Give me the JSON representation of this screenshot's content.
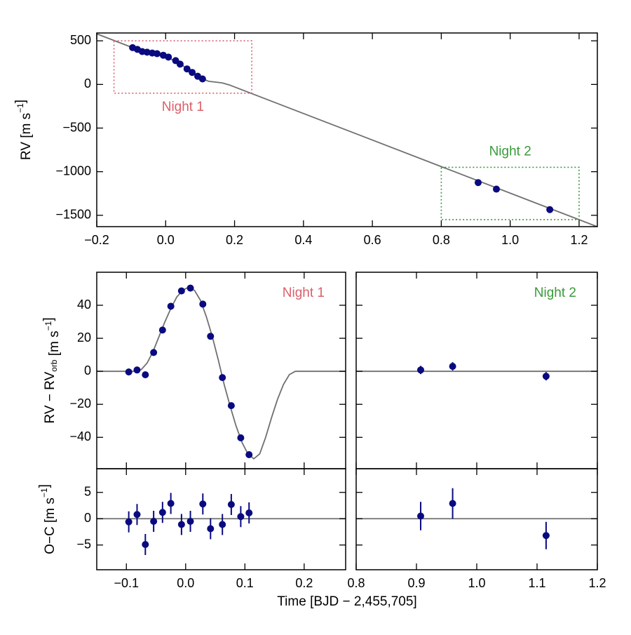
{
  "chart_data": [
    {
      "type": "scatter",
      "ylabel": [
        "RV [m s",
        {
          "sup": "−1"
        },
        "]"
      ],
      "xlim": [
        -0.2,
        1.253
      ],
      "ylim": [
        -1630,
        590
      ],
      "xticks": [
        {
          "value": -0.2,
          "label": "−0.2"
        },
        {
          "value": 0,
          "label": "0.0"
        },
        0.2,
        0.4,
        0.6,
        0.8,
        {
          "value": 1,
          "label": "1.0"
        },
        1.2
      ],
      "yticks": [
        {
          "value": -1500,
          "label": "−1500"
        },
        {
          "value": -1000,
          "label": "−1000"
        },
        {
          "value": -500,
          "label": "−500"
        },
        0,
        500
      ],
      "series": [
        {
          "style": "line",
          "color": "#707070",
          "x": [
            -0.2,
            -0.085,
            -0.045,
            -0.005,
            0.045,
            0.085,
            0.105,
            0.125,
            0.145,
            0.165,
            0.185,
            1.253
          ],
          "values": [
            580,
            405,
            366,
            333,
            229,
            114,
            66,
            36,
            27,
            17,
            -6,
            -1631
          ]
        },
        {
          "style": "marker",
          "color": "#0a0a80",
          "x": [
            -0.096,
            -0.082,
            -0.068,
            -0.054,
            -0.039,
            -0.025,
            -0.007,
            0.008,
            0.029,
            0.042,
            0.062,
            0.077,
            0.093,
            0.107,
            0.907,
            0.96,
            1.115
          ],
          "values": [
            422,
            402,
            377,
            370,
            360,
            353,
            335,
            314,
            273,
            233,
            178,
            138,
            94,
            63,
            -1125,
            -1200,
            -1435
          ]
        }
      ],
      "boxes": [
        {
          "label": "Night 1",
          "color": "#d9606b",
          "x": [
            -0.15,
            0.25
          ],
          "y": [
            -100,
            500
          ]
        },
        {
          "label": "Night 2",
          "color": "#3a9a3a",
          "x": [
            0.8,
            1.2
          ],
          "y": [
            -1550,
            -950
          ]
        }
      ]
    },
    {
      "type": "scatter",
      "ylabel": [
        "RV − RV",
        {
          "sub": "orb"
        },
        " [m s",
        {
          "sup": "−1"
        },
        "]"
      ],
      "xlim": [
        -0.15,
        0.27
      ],
      "ylim": [
        -59,
        60
      ],
      "xticks": [
        -0.1,
        0,
        0.1,
        0.2
      ],
      "yticks": [
        {
          "value": -40,
          "label": "−40"
        },
        {
          "value": -20,
          "label": "−20"
        },
        0,
        20,
        40
      ],
      "annotation": {
        "text": "Night 1",
        "color": "#d9606b"
      },
      "series": [
        {
          "style": "line",
          "color": "#707070",
          "x": [
            -0.15,
            -0.085,
            -0.075,
            -0.065,
            -0.055,
            -0.045,
            -0.035,
            -0.025,
            -0.015,
            -0.005,
            0.005,
            0.015,
            0.025,
            0.035,
            0.045,
            0.055,
            0.065,
            0.075,
            0.085,
            0.095,
            0.105,
            0.115,
            0.125,
            0.135,
            0.145,
            0.155,
            0.165,
            0.175,
            0.185,
            0.27
          ],
          "values": [
            0,
            0,
            1,
            5,
            12,
            21,
            30,
            38,
            45,
            49,
            51,
            49,
            43,
            33,
            21,
            7,
            -8,
            -21,
            -33,
            -43,
            -50,
            -53,
            -50,
            -40,
            -28,
            -17,
            -8,
            -2,
            0,
            0
          ]
        },
        {
          "style": "marker",
          "color": "#0a0a80",
          "x": [
            -0.096,
            -0.082,
            -0.068,
            -0.054,
            -0.039,
            -0.025,
            -0.007,
            0.008,
            0.029,
            0.042,
            0.062,
            0.077,
            0.093,
            0.107
          ],
          "values": [
            -0.4,
            0.8,
            -2.1,
            11.4,
            25,
            39.4,
            48.7,
            50.4,
            40.7,
            21.2,
            -3.8,
            -20.8,
            -40.3,
            -50.5
          ],
          "errors": [
            2,
            2,
            2,
            2,
            2,
            2,
            2,
            2,
            2,
            2,
            2,
            2,
            2,
            2
          ]
        }
      ]
    },
    {
      "type": "scatter",
      "xlim": [
        0.8,
        1.2
      ],
      "ylim": [
        -59,
        60
      ],
      "zero_line": true,
      "xticks": [
        0.8,
        0.9,
        1,
        1.1,
        1.2
      ],
      "yticks": [
        -40,
        -20,
        0,
        20,
        40
      ],
      "annotation": {
        "text": "Night 2",
        "color": "#3a9a3a"
      },
      "series": [
        {
          "style": "marker",
          "color": "#0a0a80",
          "x": [
            0.907,
            0.96,
            1.115
          ],
          "values": [
            0.8,
            3,
            -3
          ],
          "errors": [
            2.5,
            2.5,
            2.5
          ]
        }
      ]
    },
    {
      "type": "scatter",
      "ylabel": [
        "O−C [m s",
        {
          "sup": "−1"
        },
        "]"
      ],
      "xlabel": "Time [BJD − 2,455,705]",
      "xlim": [
        -0.15,
        0.27
      ],
      "ylim": [
        -9.7,
        9.5
      ],
      "zero_line": true,
      "xticks": [
        {
          "value": -0.1,
          "label": "−0.1"
        },
        {
          "value": 0,
          "label": "0.0"
        },
        0.1,
        0.2
      ],
      "yticks": [
        {
          "value": -5,
          "label": "−5"
        },
        0,
        5
      ],
      "series": [
        {
          "style": "marker",
          "color": "#0a0a80",
          "x": [
            -0.096,
            -0.082,
            -0.068,
            -0.054,
            -0.039,
            -0.025,
            -0.007,
            0.008,
            0.029,
            0.042,
            0.062,
            0.077,
            0.093,
            0.107
          ],
          "values": [
            -0.6,
            0.8,
            -4.9,
            -0.5,
            1.2,
            2.9,
            -1.1,
            -0.5,
            2.8,
            -1.9,
            -1.1,
            2.7,
            0.4,
            1.1
          ],
          "errors": [
            2,
            2,
            2,
            2,
            2,
            2,
            2,
            2,
            2,
            2,
            2,
            2,
            2,
            2
          ]
        }
      ]
    },
    {
      "type": "scatter",
      "xlim": [
        0.8,
        1.2
      ],
      "ylim": [
        -9.7,
        9.5
      ],
      "zero_line": true,
      "xticks": [
        {
          "value": 0.8,
          "label": "0.8"
        },
        0.9,
        {
          "value": 1,
          "label": "1.0"
        },
        1.1,
        1.2
      ],
      "yticks": [
        -5,
        0,
        5
      ],
      "series": [
        {
          "style": "marker",
          "color": "#0a0a80",
          "x": [
            0.907,
            0.96,
            1.115
          ],
          "values": [
            0.5,
            2.9,
            -3.2
          ],
          "errors": [
            2.7,
            2.9,
            2.6
          ]
        }
      ]
    }
  ]
}
